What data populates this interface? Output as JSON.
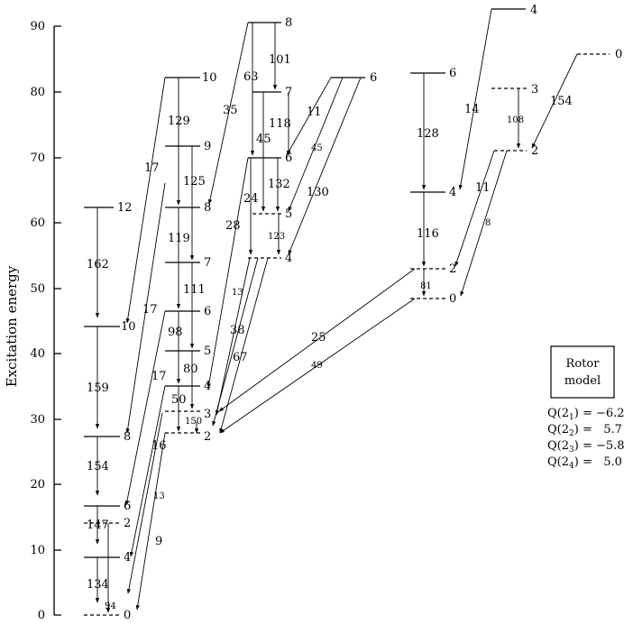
{
  "axis": {
    "title": "Excitation energy",
    "ticks": [
      "0",
      "10",
      "20",
      "30",
      "40",
      "50",
      "60",
      "70",
      "80",
      "90"
    ]
  },
  "levels": [
    {
      "id": "b1-0",
      "label": "0",
      "style": "dash"
    },
    {
      "id": "b1-2",
      "label": "2",
      "style": "dash"
    },
    {
      "id": "b1-4",
      "label": "4",
      "style": "solid"
    },
    {
      "id": "b1-6",
      "label": "6",
      "style": "solid"
    },
    {
      "id": "b1-8",
      "label": "8",
      "style": "solid"
    },
    {
      "id": "b1-10",
      "label": "10",
      "style": "solid"
    },
    {
      "id": "b1-12",
      "label": "12",
      "style": "solid"
    },
    {
      "id": "b2-2",
      "label": "2",
      "style": "dash"
    },
    {
      "id": "b2-4",
      "label": "4",
      "style": "solid"
    },
    {
      "id": "b2-6",
      "label": "6",
      "style": "solid"
    },
    {
      "id": "b2-8",
      "label": "8",
      "style": "solid"
    },
    {
      "id": "b2-10",
      "label": "10",
      "style": "solid"
    },
    {
      "id": "b2-3",
      "label": "3",
      "style": "dash"
    },
    {
      "id": "b2-5",
      "label": "5",
      "style": "solid"
    },
    {
      "id": "b2-7",
      "label": "7",
      "style": "solid"
    },
    {
      "id": "b2-9",
      "label": "9",
      "style": "solid"
    },
    {
      "id": "b3-4",
      "label": "4",
      "style": "dash"
    },
    {
      "id": "b3-6",
      "label": "6",
      "style": "solid"
    },
    {
      "id": "b3-8",
      "label": "8",
      "style": "solid"
    },
    {
      "id": "b3-5",
      "label": "5",
      "style": "dash"
    },
    {
      "id": "b3-7",
      "label": "7",
      "style": "solid"
    },
    {
      "id": "b3-6r",
      "label": "6",
      "style": "solid"
    },
    {
      "id": "b4-0",
      "label": "0",
      "style": "dash"
    },
    {
      "id": "b4-2",
      "label": "2",
      "style": "dash"
    },
    {
      "id": "b4-4",
      "label": "4",
      "style": "solid"
    },
    {
      "id": "b4-6",
      "label": "6",
      "style": "solid"
    },
    {
      "id": "b4-4r",
      "label": "4",
      "style": "solid"
    },
    {
      "id": "b5-2",
      "label": "2",
      "style": "dash"
    },
    {
      "id": "b5-3",
      "label": "3",
      "style": "dash"
    },
    {
      "id": "b5-0",
      "label": "0",
      "style": "dash"
    }
  ],
  "transitions": [
    {
      "id": "t-94",
      "label": "94",
      "small": true
    },
    {
      "id": "t-134",
      "label": "134"
    },
    {
      "id": "t-147",
      "label": "147"
    },
    {
      "id": "t-154",
      "label": "154"
    },
    {
      "id": "t-159",
      "label": "159"
    },
    {
      "id": "t-162",
      "label": "162"
    },
    {
      "id": "t-9",
      "label": "9"
    },
    {
      "id": "t-13a",
      "label": "13",
      "small": true
    },
    {
      "id": "t-16",
      "label": "16"
    },
    {
      "id": "t-17a",
      "label": "17"
    },
    {
      "id": "t-17b",
      "label": "17"
    },
    {
      "id": "t-17c",
      "label": "17"
    },
    {
      "id": "t-150",
      "label": "150",
      "small": true
    },
    {
      "id": "t-50",
      "label": "50"
    },
    {
      "id": "t-80",
      "label": "80"
    },
    {
      "id": "t-98",
      "label": "98"
    },
    {
      "id": "t-111",
      "label": "111"
    },
    {
      "id": "t-119",
      "label": "119"
    },
    {
      "id": "t-125",
      "label": "125"
    },
    {
      "id": "t-129",
      "label": "129"
    },
    {
      "id": "t-13b",
      "label": "13",
      "small": true
    },
    {
      "id": "t-38",
      "label": "38"
    },
    {
      "id": "t-67",
      "label": "67"
    },
    {
      "id": "t-28",
      "label": "28"
    },
    {
      "id": "t-35",
      "label": "35"
    },
    {
      "id": "t-24",
      "label": "24"
    },
    {
      "id": "t-63",
      "label": "63"
    },
    {
      "id": "t-123",
      "label": "123",
      "small": true
    },
    {
      "id": "t-132",
      "label": "132"
    },
    {
      "id": "t-45a",
      "label": "45"
    },
    {
      "id": "t-118",
      "label": "118"
    },
    {
      "id": "t-101",
      "label": "101"
    },
    {
      "id": "t-11a",
      "label": "11"
    },
    {
      "id": "t-45b",
      "label": "45",
      "small": true
    },
    {
      "id": "t-130",
      "label": "130"
    },
    {
      "id": "t-25",
      "label": "25"
    },
    {
      "id": "t-49",
      "label": "49",
      "small": true
    },
    {
      "id": "t-81",
      "label": "81",
      "small": true
    },
    {
      "id": "t-116",
      "label": "116"
    },
    {
      "id": "t-128",
      "label": "128"
    },
    {
      "id": "t-14",
      "label": "14"
    },
    {
      "id": "t-11b",
      "label": "11"
    },
    {
      "id": "t-8",
      "label": "8",
      "small": true
    },
    {
      "id": "t-108",
      "label": "108",
      "small": true
    },
    {
      "id": "t-154b",
      "label": "154"
    }
  ],
  "legend": {
    "box_lines": [
      "Rotor",
      "model"
    ],
    "values": [
      {
        "pre": "Q(2",
        "sub": "1",
        "post": ") = −6.2"
      },
      {
        "pre": "Q(2",
        "sub": "2",
        "post": ") =   5.7"
      },
      {
        "pre": "Q(2",
        "sub": "3",
        "post": ") = −5.8"
      },
      {
        "pre": "Q(2",
        "sub": "4",
        "post": ") =   5.0"
      }
    ]
  }
}
